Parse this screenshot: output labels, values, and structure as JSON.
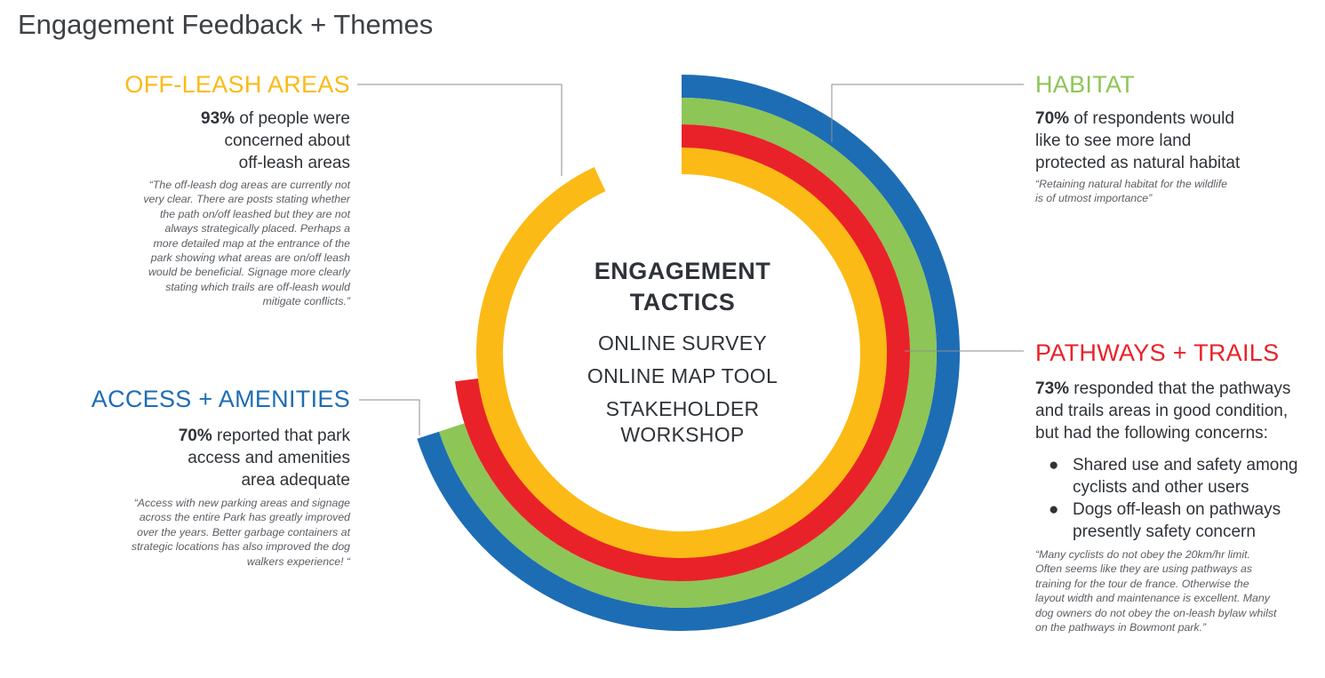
{
  "page_title": "Engagement Feedback + Themes",
  "colors": {
    "off_leash": "#fbba15",
    "habitat": "#8dc556",
    "pathways": "#e92229",
    "access": "#1d6db5",
    "text": "#3a3f44"
  },
  "center": {
    "title_lines": [
      "ENGAGEMENT",
      "TACTICS"
    ],
    "tactics": [
      "ONLINE SURVEY",
      "ONLINE MAP TOOL",
      "STAKEHOLDER",
      "WORKSHOP"
    ]
  },
  "themes": {
    "off_leash": {
      "heading": "OFF-LEASH AREAS",
      "stat_value": "93%",
      "stat_lines": [
        " of people were",
        "concerned about",
        "off-leash areas"
      ],
      "quote_lines": [
        "“The off-leash dog areas are currently not",
        "very clear. There are posts stating whether",
        "the path on/off leashed but they are not",
        "always strategically placed. Perhaps a",
        "more detailed map at the entrance of the",
        "park showing what areas are on/off leash",
        "would be beneficial. Signage more clearly",
        "stating which trails are off-leash would",
        "mitigate conflicts.”"
      ]
    },
    "habitat": {
      "heading": "HABITAT",
      "stat_value": "70%",
      "stat_lines": [
        " of respondents would",
        "like to see more land",
        "protected as natural habitat"
      ],
      "quote_lines": [
        "“Retaining natural habitat for the wildlife",
        "is of utmost importance”"
      ]
    },
    "pathways": {
      "heading": "PATHWAYS + TRAILS",
      "stat_value": "73%",
      "stat_lines": [
        " responded that the pathways",
        "and trails areas in good condition,",
        "but had the following concerns:"
      ],
      "bullets": [
        {
          "symbol": "●",
          "lines": [
            "Shared use and safety among",
            "cyclists and other users"
          ]
        },
        {
          "symbol": "●",
          "lines": [
            "Dogs off-leash on pathways",
            "presently safety concern"
          ]
        }
      ],
      "quote_lines": [
        "“Many cyclists do not obey the 20km/hr limit.",
        "Often seems like they are using pathways as",
        "training for the tour de france. Otherwise the",
        "layout width and maintenance is excellent. Many",
        "dog owners do not obey the on-leash bylaw whilst",
        "on the pathways in Bowmont park.”"
      ]
    },
    "access": {
      "heading": "ACCESS + AMENITIES",
      "stat_value": "70%",
      "stat_lines": [
        " reported that park",
        "access and amenities",
        "area adequate"
      ],
      "quote_lines": [
        "“Access with new parking areas and signage",
        "across the entire Park has greatly improved",
        "over the years.  Better garbage containers at",
        "strategic locations has also improved the dog",
        "walkers experience! “"
      ]
    }
  },
  "chart_data": {
    "type": "radial-bar",
    "series": [
      {
        "name": "OFF-LEASH AREAS",
        "percent": 93,
        "color": "#fbba15"
      },
      {
        "name": "PATHWAYS + TRAILS",
        "percent": 73,
        "color": "#e92229"
      },
      {
        "name": "HABITAT",
        "percent": 70,
        "color": "#8dc556"
      },
      {
        "name": "ACCESS + AMENITIES",
        "percent": 70,
        "color": "#1d6db5"
      }
    ]
  }
}
